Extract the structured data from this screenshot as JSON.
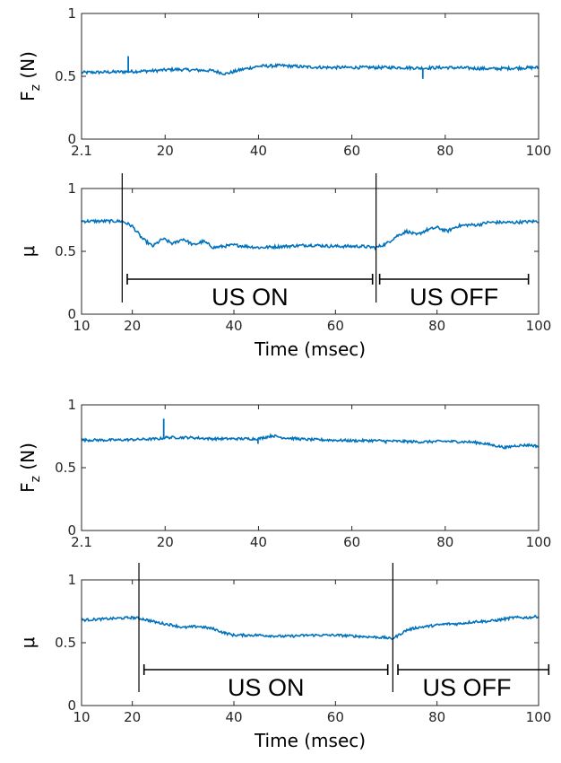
{
  "chart_data": [
    {
      "type": "line",
      "id": "panel-a-force",
      "ylabel": "F",
      "ylabel_sub": "z",
      "ylabel_unit": " (N)",
      "xlim": [
        2.1,
        100
      ],
      "ylim": [
        0,
        1
      ],
      "xtick_values": [
        2.1,
        20,
        40,
        60,
        80,
        100
      ],
      "xtick_labels": [
        "2.1",
        "20",
        "40",
        "60",
        "80",
        "100"
      ],
      "ytick_values": [
        0,
        0.5,
        1
      ],
      "ytick_labels": [
        "0",
        "0.5",
        "1"
      ],
      "color": "#0072BD",
      "grid": false,
      "series": [
        {
          "x": [
            2.1,
            10,
            12,
            18,
            22,
            26,
            30,
            33,
            36,
            40,
            45,
            50,
            55,
            60,
            65,
            70,
            75,
            80,
            85,
            90,
            95,
            100
          ],
          "y": [
            0.53,
            0.535,
            0.537,
            0.545,
            0.555,
            0.55,
            0.545,
            0.52,
            0.55,
            0.58,
            0.585,
            0.575,
            0.57,
            0.57,
            0.57,
            0.57,
            0.565,
            0.57,
            0.565,
            0.56,
            0.565,
            0.57
          ]
        }
      ],
      "spikes": [
        {
          "x": 12.1,
          "y": 0.66
        },
        {
          "x": 75.2,
          "y": 0.48
        }
      ],
      "noise": 0.012
    },
    {
      "type": "line",
      "id": "panel-a-friction",
      "ylabel": "μ",
      "xlabel": "Time (msec)",
      "xlim": [
        10,
        100
      ],
      "ylim": [
        0,
        1
      ],
      "xtick_values": [
        10,
        20,
        40,
        60,
        80,
        100
      ],
      "xtick_labels": [
        "10",
        "20",
        "40",
        "60",
        "80",
        "100"
      ],
      "ytick_values": [
        0,
        0.5,
        1
      ],
      "ytick_labels": [
        "0",
        "0.5",
        "1"
      ],
      "color": "#0072BD",
      "grid": false,
      "series": [
        {
          "x": [
            10,
            14,
            18,
            20,
            22,
            24,
            26,
            28,
            30,
            32,
            34,
            36,
            40,
            45,
            50,
            55,
            60,
            65,
            68,
            70,
            72,
            74,
            76,
            78,
            80,
            82,
            84,
            86,
            88,
            90,
            95,
            100
          ],
          "y": [
            0.74,
            0.74,
            0.74,
            0.7,
            0.6,
            0.54,
            0.6,
            0.56,
            0.6,
            0.55,
            0.58,
            0.53,
            0.55,
            0.53,
            0.54,
            0.55,
            0.54,
            0.54,
            0.53,
            0.56,
            0.62,
            0.66,
            0.63,
            0.67,
            0.69,
            0.66,
            0.7,
            0.71,
            0.71,
            0.73,
            0.73,
            0.74
          ]
        }
      ],
      "noise": 0.012,
      "vlines": [
        18,
        68
      ],
      "annotations": [
        {
          "text": "US ON",
          "from": 19,
          "to": 67.3
        },
        {
          "text": "US OFF",
          "from": 68.7,
          "to": 98
        }
      ]
    },
    {
      "type": "line",
      "id": "panel-b-force",
      "ylabel": "F",
      "ylabel_sub": "z",
      "ylabel_unit": " (N)",
      "xlim": [
        2.1,
        100
      ],
      "ylim": [
        0,
        1
      ],
      "xtick_values": [
        2.1,
        20,
        40,
        60,
        80,
        100
      ],
      "xtick_labels": [
        "2.1",
        "20",
        "40",
        "60",
        "80",
        "100"
      ],
      "ytick_values": [
        0,
        0.5,
        1
      ],
      "ytick_labels": [
        "0",
        "0.5",
        "1"
      ],
      "color": "#0072BD",
      "grid": false,
      "series": [
        {
          "x": [
            2.1,
            10,
            19,
            20,
            25,
            30,
            35,
            40,
            43,
            45,
            50,
            55,
            60,
            65,
            70,
            75,
            80,
            85,
            88,
            90,
            93,
            95,
            98,
            100
          ],
          "y": [
            0.72,
            0.72,
            0.73,
            0.74,
            0.74,
            0.73,
            0.73,
            0.73,
            0.755,
            0.74,
            0.725,
            0.72,
            0.715,
            0.715,
            0.71,
            0.705,
            0.71,
            0.705,
            0.695,
            0.68,
            0.66,
            0.675,
            0.68,
            0.67
          ]
        }
      ],
      "spikes": [
        {
          "x": 19.7,
          "y": 0.89
        },
        {
          "x": 39.9,
          "y": 0.69
        },
        {
          "x": 67.3,
          "y": 0.69
        }
      ],
      "noise": 0.01
    },
    {
      "type": "line",
      "id": "panel-b-friction",
      "ylabel": "μ",
      "xlabel": "Time (msec)",
      "xlim": [
        10,
        100
      ],
      "ylim": [
        0,
        1
      ],
      "xtick_values": [
        10,
        20,
        40,
        60,
        80,
        100
      ],
      "xtick_labels": [
        "10",
        "20",
        "40",
        "60",
        "80",
        "100"
      ],
      "ytick_values": [
        0,
        0.5,
        1
      ],
      "ytick_labels": [
        "0",
        "0.5",
        "1"
      ],
      "color": "#0072BD",
      "grid": false,
      "series": [
        {
          "x": [
            10,
            15,
            20,
            21,
            22,
            25,
            28,
            30,
            33,
            36,
            38,
            40,
            45,
            50,
            55,
            60,
            65,
            70,
            71,
            72,
            74,
            76,
            78,
            80,
            82,
            84,
            86,
            88,
            90,
            92,
            95,
            98,
            100
          ],
          "y": [
            0.68,
            0.69,
            0.7,
            0.695,
            0.69,
            0.66,
            0.64,
            0.62,
            0.63,
            0.61,
            0.58,
            0.56,
            0.56,
            0.55,
            0.56,
            0.56,
            0.55,
            0.54,
            0.53,
            0.55,
            0.6,
            0.62,
            0.63,
            0.64,
            0.65,
            0.65,
            0.66,
            0.67,
            0.67,
            0.68,
            0.7,
            0.7,
            0.71
          ]
        }
      ],
      "noise": 0.01,
      "vlines": [
        21.3,
        71.3
      ],
      "annotations": [
        {
          "text": "US ON",
          "from": 22.3,
          "to": 70.3
        },
        {
          "text": "US OFF",
          "from": 72.3,
          "to": 102
        }
      ]
    }
  ]
}
